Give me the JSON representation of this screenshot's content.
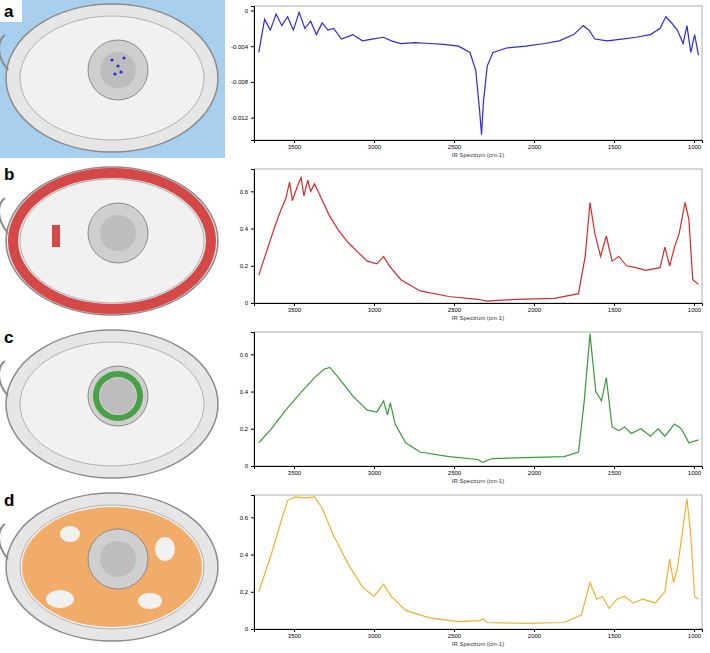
{
  "chart_data": [
    {
      "type": "line",
      "title": "a",
      "x_label": "IR Spectrum (cm-1)",
      "color": "#2b2bd6",
      "xlim": [
        3750,
        950
      ],
      "xticks": [
        3500,
        3000,
        2500,
        2000,
        1500,
        1000
      ],
      "ylim": [
        -0.0145,
        0.0005
      ],
      "yticks": [
        -0.012,
        -0.008,
        -0.004,
        0
      ],
      "x": [
        3720,
        3684,
        3648,
        3612,
        3576,
        3540,
        3504,
        3468,
        3432,
        3396,
        3360,
        3324,
        3288,
        3252,
        3204,
        3132,
        3072,
        3012,
        2940,
        2892,
        2832,
        2742,
        2652,
        2562,
        2472,
        2400,
        2364,
        2340,
        2328,
        2316,
        2292,
        2256,
        2172,
        2052,
        1932,
        1842,
        1752,
        1692,
        1656,
        1620,
        1542,
        1452,
        1362,
        1272,
        1212,
        1176,
        1140,
        1104,
        1068,
        1044,
        1020,
        996,
        972
      ],
      "values": [
        -0.0047,
        -0.001,
        -0.0022,
        -0.0004,
        -0.0017,
        -0.0007,
        -0.0022,
        -0.0002,
        -0.002,
        -0.0012,
        -0.0027,
        -0.0014,
        -0.0022,
        -0.002,
        -0.0032,
        -0.0027,
        -0.0034,
        -0.0032,
        -0.003,
        -0.0034,
        -0.0037,
        -0.0036,
        -0.0037,
        -0.0038,
        -0.004,
        -0.0047,
        -0.0067,
        -0.0112,
        -0.0139,
        -0.0102,
        -0.0062,
        -0.0047,
        -0.0042,
        -0.004,
        -0.0037,
        -0.0034,
        -0.0027,
        -0.0017,
        -0.0022,
        -0.0032,
        -0.0034,
        -0.0032,
        -0.003,
        -0.0027,
        -0.002,
        -0.0007,
        -0.0014,
        -0.0022,
        -0.0037,
        -0.0017,
        -0.0047,
        -0.0027,
        -0.005
      ]
    },
    {
      "type": "line",
      "title": "b",
      "x_label": "IR Spectrum (cm-1)",
      "color": "#d12b2b",
      "xlim": [
        3750,
        950
      ],
      "xticks": [
        3500,
        3000,
        2500,
        2000,
        1500,
        1000
      ],
      "ylim": [
        0,
        0.72
      ],
      "yticks": [
        0,
        0.2,
        0.4,
        0.6
      ],
      "x": [
        3720,
        3672,
        3624,
        3582,
        3552,
        3528,
        3510,
        3480,
        3456,
        3438,
        3414,
        3396,
        3372,
        3336,
        3282,
        3222,
        3162,
        3102,
        3042,
        2982,
        2940,
        2904,
        2832,
        2712,
        2532,
        2352,
        2292,
        2112,
        1872,
        1722,
        1680,
        1650,
        1620,
        1584,
        1548,
        1512,
        1470,
        1422,
        1362,
        1302,
        1212,
        1182,
        1152,
        1122,
        1092,
        1056,
        1032,
        1008,
        972
      ],
      "values": [
        0.15,
        0.275,
        0.4,
        0.5,
        0.56,
        0.65,
        0.55,
        0.625,
        0.675,
        0.575,
        0.66,
        0.6,
        0.64,
        0.575,
        0.475,
        0.39,
        0.325,
        0.275,
        0.225,
        0.21,
        0.25,
        0.2,
        0.125,
        0.065,
        0.035,
        0.02,
        0.01,
        0.02,
        0.025,
        0.05,
        0.25,
        0.54,
        0.375,
        0.25,
        0.36,
        0.225,
        0.25,
        0.2,
        0.19,
        0.175,
        0.19,
        0.3,
        0.2,
        0.3,
        0.375,
        0.54,
        0.45,
        0.125,
        0.1
      ]
    },
    {
      "type": "line",
      "title": "c",
      "x_label": "IR Spectrum (cm-1)",
      "color": "#3a9a3a",
      "xlim": [
        3750,
        950
      ],
      "xticks": [
        3500,
        3000,
        2500,
        2000,
        1500,
        1000
      ],
      "ylim": [
        0,
        0.72
      ],
      "yticks": [
        0,
        0.2,
        0.4,
        0.6
      ],
      "x": [
        3720,
        3642,
        3552,
        3462,
        3372,
        3312,
        3276,
        3222,
        3132,
        3042,
        2982,
        2940,
        2916,
        2898,
        2868,
        2802,
        2712,
        2532,
        2352,
        2322,
        2262,
        2052,
        1812,
        1722,
        1686,
        1650,
        1614,
        1578,
        1548,
        1512,
        1470,
        1434,
        1392,
        1332,
        1272,
        1224,
        1182,
        1122,
        1080,
        1032,
        972
      ],
      "values": [
        0.125,
        0.2,
        0.3,
        0.39,
        0.475,
        0.52,
        0.53,
        0.475,
        0.375,
        0.3,
        0.29,
        0.35,
        0.275,
        0.34,
        0.225,
        0.125,
        0.075,
        0.05,
        0.035,
        0.02,
        0.04,
        0.045,
        0.05,
        0.075,
        0.35,
        0.71,
        0.4,
        0.35,
        0.475,
        0.21,
        0.19,
        0.21,
        0.175,
        0.2,
        0.16,
        0.2,
        0.16,
        0.225,
        0.2,
        0.125,
        0.14
      ]
    },
    {
      "type": "line",
      "title": "d",
      "x_label": "IR Spectrum (cm-1)",
      "color": "#f0b030",
      "xlim": [
        3750,
        950
      ],
      "xticks": [
        3500,
        3000,
        2500,
        2000,
        1500,
        1000
      ],
      "ylim": [
        0,
        0.72
      ],
      "yticks": [
        0,
        0.2,
        0.4,
        0.6
      ],
      "x": [
        3720,
        3642,
        3582,
        3540,
        3492,
        3432,
        3372,
        3324,
        3252,
        3162,
        3072,
        3000,
        2940,
        2892,
        2802,
        2652,
        2472,
        2340,
        2316,
        2292,
        2052,
        1812,
        1704,
        1650,
        1608,
        1572,
        1530,
        1482,
        1434,
        1380,
        1320,
        1242,
        1182,
        1152,
        1128,
        1104,
        1068,
        1044,
        1020,
        996,
        972
      ],
      "values": [
        0.2,
        0.4,
        0.575,
        0.69,
        0.71,
        0.705,
        0.71,
        0.65,
        0.5,
        0.35,
        0.225,
        0.175,
        0.24,
        0.175,
        0.1,
        0.06,
        0.04,
        0.045,
        0.055,
        0.035,
        0.03,
        0.035,
        0.075,
        0.25,
        0.16,
        0.175,
        0.11,
        0.16,
        0.175,
        0.14,
        0.16,
        0.14,
        0.2,
        0.375,
        0.25,
        0.325,
        0.55,
        0.7,
        0.5,
        0.175,
        0.16
      ]
    }
  ]
}
